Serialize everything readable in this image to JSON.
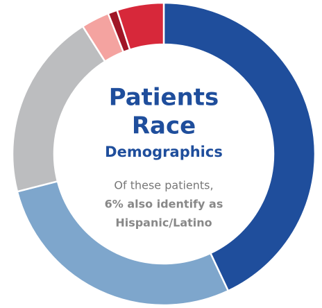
{
  "chart_data": {
    "type": "pie",
    "values": [
      43,
      28,
      20,
      3,
      1,
      5
    ],
    "colors": [
      "#1f4e9c",
      "#7ea6cc",
      "#bcbdbf",
      "#f4a3a0",
      "#a01626",
      "#d7283a"
    ],
    "title_lines": [
      "Patients",
      "Race"
    ],
    "subtitle": "Demographics",
    "annotation_lines": [
      "Of these patients,",
      "6% also identify as",
      "Hispanic/Latino"
    ]
  }
}
